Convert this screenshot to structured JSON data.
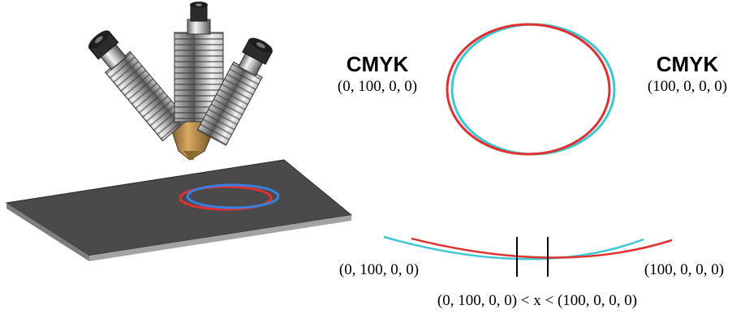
{
  "left_label": {
    "title": "CMYK",
    "value": "(0, 100, 0, 0)"
  },
  "right_label": {
    "title": "CMYK",
    "value": "(100, 0, 0, 0)"
  },
  "bottom_left_value": "(0, 100, 0, 0)",
  "bottom_right_value": "(100, 0, 0, 0)",
  "inequality": "(0, 100, 0, 0) < x < (100, 0, 0, 0)",
  "colors": {
    "magenta_stroke": "#e03030",
    "cyan_stroke": "#3fc6d4",
    "blue_ring": "#3a7fe0",
    "plate_top": "#4a4a4a",
    "plate_edge": "#9a9a9a",
    "brass": "#b98b45"
  }
}
